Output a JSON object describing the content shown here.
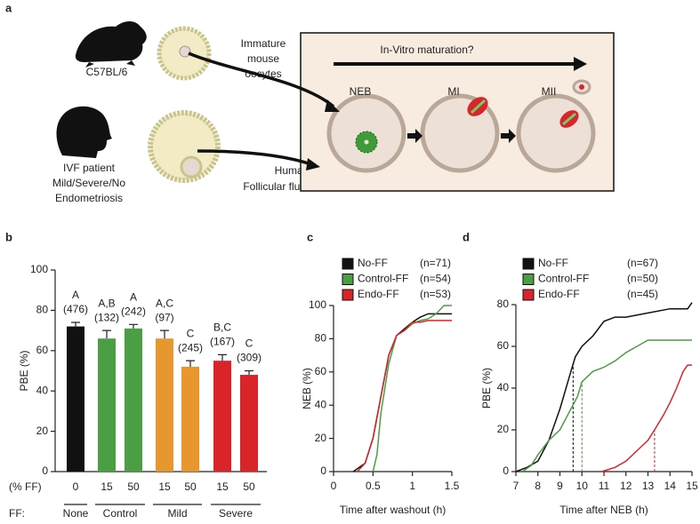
{
  "panels": [
    "a",
    "b",
    "c",
    "d"
  ],
  "diagram": {
    "mouse_strain": "C57BL/6",
    "oocyte_label": [
      "Immature",
      "mouse",
      "oocytes"
    ],
    "patient_label": [
      "IVF patient",
      "Mild/Severe/No",
      "Endometriosis"
    ],
    "fluid_label": [
      "Human",
      "Follicular fluid"
    ],
    "process_label": "In-Vitro maturation?",
    "stages": [
      "NEB",
      "MI",
      "MII"
    ]
  },
  "chart_data": [
    {
      "type": "bar",
      "ylabel": "PBE (%)",
      "categories": [
        "0",
        "15",
        "50",
        "15",
        "50",
        "15",
        "50"
      ],
      "values": [
        72,
        66,
        71,
        66,
        52,
        55,
        48
      ],
      "errors": [
        2,
        4,
        2,
        4,
        3,
        3,
        2
      ],
      "colors": [
        "#111111",
        "#4c9e45",
        "#4c9e45",
        "#e8962e",
        "#e8962e",
        "#d9242a",
        "#d9242a"
      ],
      "letter_labels": [
        "A",
        "A,B",
        "A",
        "A,C",
        "C",
        "B,C",
        "C"
      ],
      "n_labels": [
        "(476)",
        "(132)",
        "(242)",
        "(97)",
        "(245)",
        "(167)",
        "(309)"
      ],
      "x_row_label": "(% FF)",
      "group_row_label": "FF:",
      "groups": [
        "None",
        "Control",
        "Mild",
        "Severe"
      ],
      "ylim": [
        0,
        100
      ],
      "yticks": [
        0,
        20,
        40,
        60,
        80,
        100
      ]
    },
    {
      "type": "line",
      "xlabel": "Time after washout (h)",
      "ylabel": "NEB (%)",
      "xlim": [
        0,
        1.5
      ],
      "xticks": [
        0,
        0.5,
        1,
        1.5
      ],
      "ylim": [
        0,
        100
      ],
      "yticks": [
        0,
        20,
        40,
        60,
        80,
        100
      ],
      "series": [
        {
          "name": "No-FF",
          "n_label": "(n=71)",
          "color": "#111111",
          "x": [
            0.25,
            0.4,
            0.5,
            0.6,
            0.7,
            0.8,
            0.9,
            1.0,
            1.1,
            1.2,
            1.5
          ],
          "values": [
            0,
            5,
            20,
            45,
            70,
            82,
            86,
            90,
            93,
            95,
            95
          ]
        },
        {
          "name": "Control-FF",
          "n_label": "(n=54)",
          "color": "#4c9e45",
          "x": [
            0.5,
            0.55,
            0.6,
            0.7,
            0.8,
            0.9,
            1.0,
            1.1,
            1.2,
            1.3,
            1.4,
            1.5
          ],
          "values": [
            0,
            10,
            35,
            65,
            82,
            85,
            89,
            91,
            92,
            95,
            100,
            100
          ]
        },
        {
          "name": "Endo-FF",
          "n_label": "(n=53)",
          "color": "#d9242a",
          "x": [
            0.3,
            0.4,
            0.5,
            0.6,
            0.7,
            0.8,
            0.9,
            1.0,
            1.1,
            1.2,
            1.5
          ],
          "values": [
            0,
            5,
            20,
            45,
            70,
            82,
            85,
            90,
            90,
            91,
            91
          ]
        }
      ]
    },
    {
      "type": "line",
      "xlabel": "Time after NEB (h)",
      "ylabel": "PBE (%)",
      "xlim": [
        7,
        15
      ],
      "xticks": [
        7,
        8,
        9,
        10,
        11,
        12,
        13,
        14,
        15
      ],
      "ylim": [
        0,
        80
      ],
      "yticks": [
        0,
        20,
        40,
        60,
        80
      ],
      "series": [
        {
          "name": "No-FF",
          "n_label": "(n=67)",
          "color": "#111111",
          "median": 9.6,
          "x": [
            7,
            7.5,
            8,
            8.5,
            9,
            9.5,
            9.7,
            10,
            10.5,
            11,
            11.5,
            12,
            13,
            14,
            14.8,
            15
          ],
          "values": [
            0,
            2,
            5,
            15,
            30,
            48,
            55,
            60,
            65,
            72,
            74,
            74,
            76,
            78,
            78,
            81
          ]
        },
        {
          "name": "Control-FF",
          "n_label": "(n=50)",
          "color": "#4c9e45",
          "median": 10,
          "x": [
            7.3,
            7.7,
            8,
            8.5,
            9,
            9.5,
            9.8,
            10,
            10.5,
            11,
            11.5,
            12,
            12.5,
            13,
            15
          ],
          "values": [
            0,
            3,
            8,
            15,
            20,
            30,
            36,
            43,
            48,
            50,
            53,
            57,
            60,
            63,
            63
          ]
        },
        {
          "name": "Endo-FF",
          "n_label": "(n=45)",
          "color": "#d9242a",
          "median": 13.3,
          "x": [
            10.9,
            11.5,
            12,
            12.5,
            13,
            13.3,
            13.7,
            14,
            14.3,
            14.6,
            14.8,
            15
          ],
          "values": [
            0,
            2,
            5,
            10,
            15,
            20,
            27,
            33,
            40,
            48,
            51,
            51
          ]
        }
      ]
    }
  ]
}
